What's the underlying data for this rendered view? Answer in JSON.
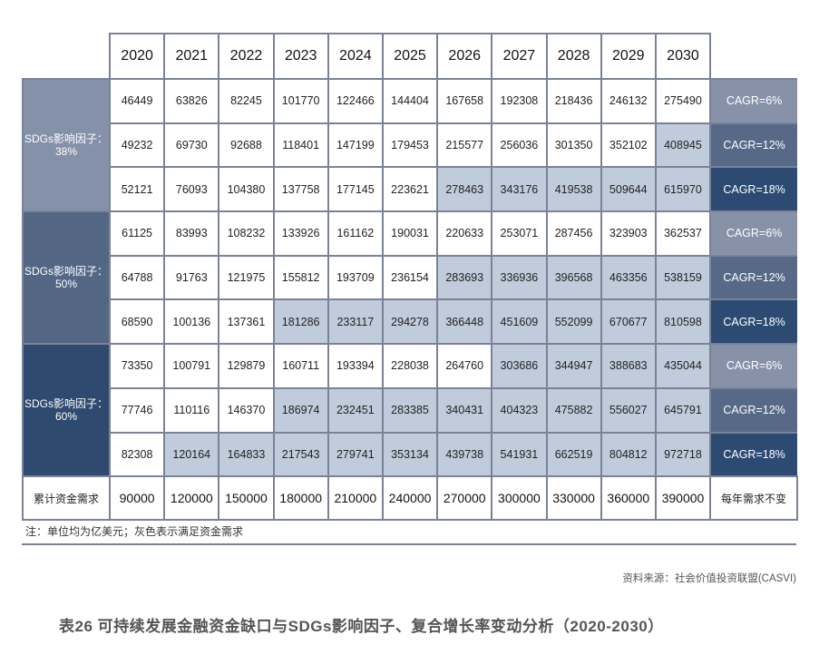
{
  "table": {
    "years": [
      "2020",
      "2021",
      "2022",
      "2023",
      "2024",
      "2025",
      "2026",
      "2027",
      "2028",
      "2029",
      "2030"
    ],
    "groups": [
      {
        "label_line1": "SDGs影响因子：",
        "label_line2": "38%",
        "rows": [
          {
            "values": [
              "46449",
              "63826",
              "82245",
              "101770",
              "122466",
              "144404",
              "167658",
              "192308",
              "218436",
              "246132",
              "275490"
            ],
            "met": [
              false,
              false,
              false,
              false,
              false,
              false,
              false,
              false,
              false,
              false,
              false
            ],
            "cagr": "CAGR=6%"
          },
          {
            "values": [
              "49232",
              "69730",
              "92688",
              "118401",
              "147199",
              "179453",
              "215577",
              "256036",
              "301350",
              "352102",
              "408945"
            ],
            "met": [
              false,
              false,
              false,
              false,
              false,
              false,
              false,
              false,
              false,
              false,
              true
            ],
            "cagr": "CAGR=12%"
          },
          {
            "values": [
              "52121",
              "76093",
              "104380",
              "137758",
              "177145",
              "223621",
              "278463",
              "343176",
              "419538",
              "509644",
              "615970"
            ],
            "met": [
              false,
              false,
              false,
              false,
              false,
              false,
              true,
              true,
              true,
              true,
              true
            ],
            "cagr": "CAGR=18%"
          }
        ]
      },
      {
        "label_line1": "SDGs影响因子：",
        "label_line2": "50%",
        "rows": [
          {
            "values": [
              "61125",
              "83993",
              "108232",
              "133926",
              "161162",
              "190031",
              "220633",
              "253071",
              "287456",
              "323903",
              "362537"
            ],
            "met": [
              false,
              false,
              false,
              false,
              false,
              false,
              false,
              false,
              false,
              false,
              false
            ],
            "cagr": "CAGR=6%"
          },
          {
            "values": [
              "64788",
              "91763",
              "121975",
              "155812",
              "193709",
              "236154",
              "283693",
              "336936",
              "396568",
              "463356",
              "538159"
            ],
            "met": [
              false,
              false,
              false,
              false,
              false,
              false,
              true,
              true,
              true,
              true,
              true
            ],
            "cagr": "CAGR=12%"
          },
          {
            "values": [
              "68590",
              "100136",
              "137361",
              "181286",
              "233117",
              "294278",
              "366448",
              "451609",
              "552099",
              "670677",
              "810598"
            ],
            "met": [
              false,
              false,
              false,
              true,
              true,
              true,
              true,
              true,
              true,
              true,
              true
            ],
            "cagr": "CAGR=18%"
          }
        ]
      },
      {
        "label_line1": "SDGs影响因子：",
        "label_line2": "60%",
        "rows": [
          {
            "values": [
              "73350",
              "100791",
              "129879",
              "160711",
              "193394",
              "228038",
              "264760",
              "303686",
              "344947",
              "388683",
              "435044"
            ],
            "met": [
              false,
              false,
              false,
              false,
              false,
              false,
              false,
              true,
              true,
              true,
              true
            ],
            "cagr": "CAGR=6%"
          },
          {
            "values": [
              "77746",
              "110116",
              "146370",
              "186974",
              "232451",
              "283385",
              "340431",
              "404323",
              "475882",
              "556027",
              "645791"
            ],
            "met": [
              false,
              false,
              false,
              true,
              true,
              true,
              true,
              true,
              true,
              true,
              true
            ],
            "cagr": "CAGR=12%"
          },
          {
            "values": [
              "82308",
              "120164",
              "164833",
              "217543",
              "279741",
              "353134",
              "439738",
              "541931",
              "662519",
              "804812",
              "972718"
            ],
            "met": [
              false,
              true,
              true,
              true,
              true,
              true,
              true,
              true,
              true,
              true,
              true
            ],
            "cagr": "CAGR=18%"
          }
        ]
      }
    ],
    "total_row": {
      "label": "累计资金需求",
      "values": [
        "90000",
        "120000",
        "150000",
        "180000",
        "210000",
        "240000",
        "270000",
        "300000",
        "330000",
        "360000",
        "390000"
      ],
      "note": "每年需求不变"
    }
  },
  "note": "注：单位均为亿美元；灰色表示满足资金需求",
  "source": "资料来源：社会价值投资联盟(CASVI)",
  "caption": "表26  可持续发展金融资金缺口与SDGs影响因子、复合增长率变动分析（2020-2030）",
  "colors": {
    "border": "#7a8298",
    "met_cell": "#c0ccdb",
    "group_38": "#8591a8",
    "group_50": "#536785",
    "group_60": "#2e4a6e",
    "cagr_6": "#8792a9",
    "cagr_12": "#566a87",
    "cagr_18": "#2d4a72"
  }
}
